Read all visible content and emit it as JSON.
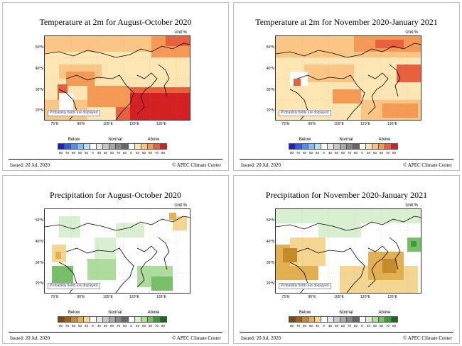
{
  "panels": [
    {
      "title": "Temperature at 2m for August-October 2020",
      "unit": "Unit:%",
      "variable": "temperature",
      "probability_note": "Probability fields are displayed",
      "legend_categories": [
        "Below",
        "Normal",
        "Above"
      ],
      "legend_ticks": [
        "80",
        "70",
        "60",
        "50",
        "40",
        "0",
        "40",
        "50",
        "60",
        "70",
        "80",
        "0",
        "40",
        "50",
        "60",
        "70",
        "80"
      ],
      "legend_colors": [
        "#1f1fc8",
        "#2f5fe0",
        "#4c8ff0",
        "#7fbff8",
        "#b8e0fc",
        "#ffffff",
        "#e6e6e6",
        "#c8c8c8",
        "#a8a8a8",
        "#888888",
        "#686868",
        "#ffffff",
        "#fde6b4",
        "#fbc684",
        "#f59a54",
        "#e8603c",
        "#d42020"
      ],
      "issued": "Issued: 20 Jul, 2020",
      "credit": "© APEC Climate Center"
    },
    {
      "title": "Temperature at 2m for November 2020-January 2021",
      "unit": "Unit:%",
      "variable": "temperature",
      "probability_note": "Probability fields are displayed",
      "legend_categories": [
        "Below",
        "Normal",
        "Above"
      ],
      "legend_ticks": [
        "80",
        "70",
        "60",
        "50",
        "40",
        "0",
        "40",
        "50",
        "60",
        "70",
        "80",
        "0",
        "40",
        "50",
        "60",
        "70",
        "80"
      ],
      "legend_colors": [
        "#1f1fc8",
        "#2f5fe0",
        "#4c8ff0",
        "#7fbff8",
        "#b8e0fc",
        "#ffffff",
        "#e6e6e6",
        "#c8c8c8",
        "#a8a8a8",
        "#888888",
        "#686868",
        "#ffffff",
        "#fde6b4",
        "#fbc684",
        "#f59a54",
        "#e8603c",
        "#d42020"
      ],
      "issued": "Issued: 20 Jul, 2020",
      "credit": "© APEC Climate Center"
    },
    {
      "title": "Precipitation for August-October 2020",
      "unit": "Unit:%",
      "variable": "precipitation",
      "probability_note": "Probability fields are displayed",
      "legend_categories": [
        "Below",
        "Normal",
        "Above"
      ],
      "legend_ticks": [
        "80",
        "70",
        "60",
        "50",
        "40",
        "0",
        "40",
        "50",
        "60",
        "70",
        "80",
        "0",
        "40",
        "50",
        "60",
        "70",
        "80"
      ],
      "legend_colors": [
        "#7a4a0a",
        "#9c6418",
        "#c48a2c",
        "#e2b050",
        "#f4d690",
        "#ffffff",
        "#e6e6e6",
        "#c8c8c8",
        "#a8a8a8",
        "#888888",
        "#686868",
        "#ffffff",
        "#d8f0d0",
        "#aedc9c",
        "#78c068",
        "#3f9a3a",
        "#1a6a1e"
      ],
      "issued": "Issued: 20 Jul, 2020",
      "credit": "© APEC Climate Center"
    },
    {
      "title": "Precipitation for November 2020-January 2021",
      "unit": "Unit:%",
      "variable": "precipitation",
      "probability_note": "Probability fields are displayed",
      "legend_categories": [
        "Below",
        "Normal",
        "Above"
      ],
      "legend_ticks": [
        "80",
        "70",
        "60",
        "50",
        "40",
        "0",
        "40",
        "50",
        "60",
        "70",
        "80",
        "0",
        "40",
        "50",
        "60",
        "70",
        "80"
      ],
      "legend_colors": [
        "#7a4a0a",
        "#9c6418",
        "#c48a2c",
        "#e2b050",
        "#f4d690",
        "#ffffff",
        "#e6e6e6",
        "#c8c8c8",
        "#a8a8a8",
        "#888888",
        "#686868",
        "#ffffff",
        "#d8f0d0",
        "#aedc9c",
        "#78c068",
        "#3f9a3a",
        "#1a6a1e"
      ],
      "issued": "Issued: 20 Jul, 2020",
      "credit": "© APEC Climate Center"
    }
  ],
  "map_axes": {
    "lat_labels": [
      "50°N",
      "40°N",
      "30°N",
      "20°N"
    ],
    "lon_labels": [
      "75°E",
      "90°E",
      "105°E",
      "120°E",
      "135°E"
    ]
  }
}
